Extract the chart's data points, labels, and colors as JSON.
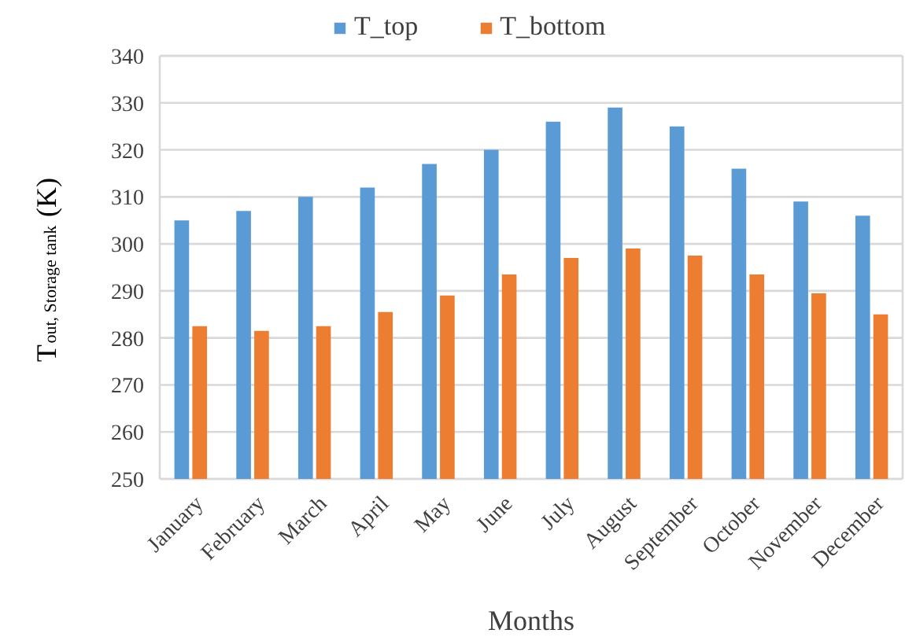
{
  "chart_data": {
    "type": "bar",
    "xlabel": "Months",
    "ylabel": "T$_{out, Storage tank}$ (K)",
    "categories": [
      "January",
      "February",
      "March",
      "April",
      "May",
      "June",
      "July",
      "August",
      "September",
      "October",
      "November",
      "December"
    ],
    "series": [
      {
        "name": "T_top",
        "color": "#5b9bd5",
        "values": [
          305,
          307,
          310,
          312,
          317,
          320,
          326,
          329,
          325,
          316,
          309,
          306
        ]
      },
      {
        "name": "T_bottom",
        "color": "#ed7d31",
        "values": [
          282.5,
          281.5,
          282.5,
          285.5,
          289,
          293.5,
          297,
          299,
          297.5,
          293.5,
          289.5,
          285
        ]
      }
    ],
    "ylim": [
      250,
      340
    ],
    "yticks": [
      250,
      260,
      270,
      280,
      290,
      300,
      310,
      320,
      330,
      340
    ],
    "grid": "y",
    "legend": "top"
  }
}
